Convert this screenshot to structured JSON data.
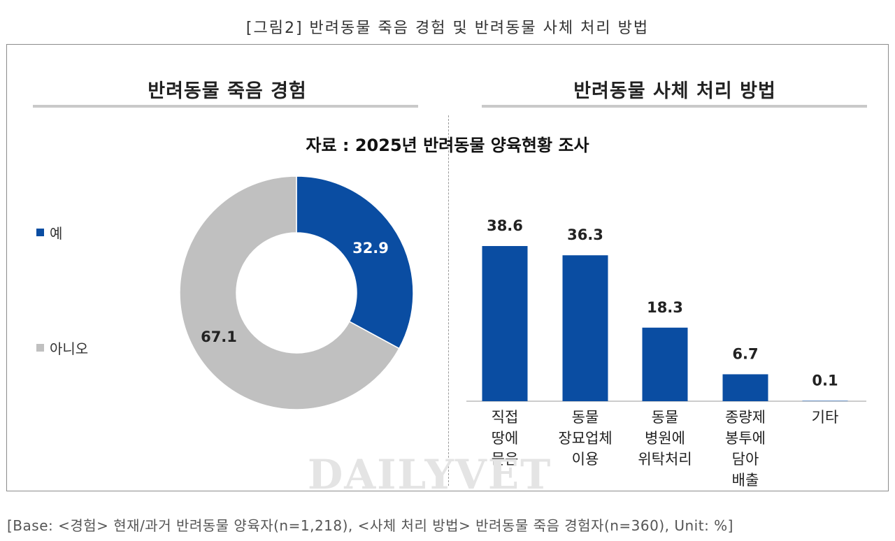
{
  "figure_title": "[그림2] 반려동물 죽음 경험 및 반려동물 사체 처리 방법",
  "source_note": "자료 : 2025년 반려동물 양육현황 조사",
  "footer": "[Base: <경험> 현재/과거 반려동물 양육자(n=1,218), <사체 처리 방법> 반려동물 죽음 경험자(n=360), Unit: %]",
  "watermark": "DAILYVET",
  "colors": {
    "blue": "#0a4da2",
    "gray": "#c0c0c0",
    "rule": "#c9c9c9"
  },
  "chart_data": [
    {
      "type": "pie",
      "title": "반려동물 죽음 경험",
      "donut": true,
      "categories": [
        "예",
        "아니오"
      ],
      "values": [
        32.9,
        67.1
      ],
      "colors": [
        "#0a4da2",
        "#c0c0c0"
      ],
      "legend_position": "left"
    },
    {
      "type": "bar",
      "title": "반려동물 사체 처리 방법",
      "categories": [
        [
          "직접",
          "땅에",
          "묻음"
        ],
        [
          "동물",
          "장묘업체",
          "이용"
        ],
        [
          "동물",
          "병원에",
          "위탁처리"
        ],
        [
          "종량제",
          "봉투에",
          "담아",
          "배출"
        ],
        [
          "기타"
        ]
      ],
      "values": [
        38.6,
        36.3,
        18.3,
        6.7,
        0.1
      ],
      "value_labels": [
        "38.6",
        "36.3",
        "18.3",
        "6.7",
        "0.1"
      ],
      "color": "#0a4da2",
      "ylim": [
        0,
        45
      ],
      "grid": false
    }
  ]
}
